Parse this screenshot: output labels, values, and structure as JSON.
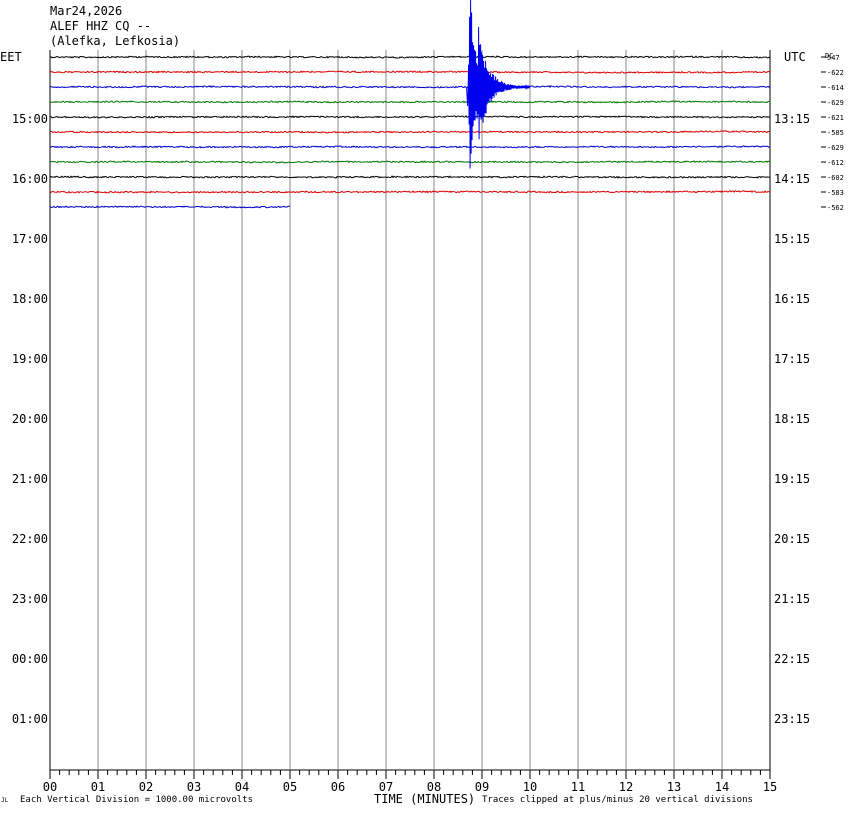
{
  "header": {
    "date": "Mar24,2026",
    "channel": "ALEF HHZ CQ --",
    "location": "(Alefka, Lefkosia)"
  },
  "chart_data": {
    "type": "line",
    "title": "",
    "left_axis_label": "EET",
    "right_axis_label": "UTC",
    "dc_label": "DC",
    "left_time_labels": [
      "15:00",
      "16:00",
      "17:00",
      "18:00",
      "19:00",
      "20:00",
      "21:00",
      "22:00",
      "23:00",
      "00:00",
      "01:00"
    ],
    "right_time_labels": [
      "13:15",
      "14:15",
      "15:15",
      "16:15",
      "17:15",
      "18:15",
      "19:15",
      "20:15",
      "21:15",
      "22:15",
      "23:15"
    ],
    "x_tick_labels": [
      "00",
      "01",
      "02",
      "03",
      "04",
      "05",
      "06",
      "07",
      "08",
      "09",
      "10",
      "11",
      "12",
      "13",
      "14",
      "15"
    ],
    "xlim": [
      0,
      15
    ],
    "xlabel": "TIME (MINUTES)",
    "grid": true,
    "trace_colors": [
      "#000000",
      "#dd0000",
      "#0000cc",
      "#007700"
    ],
    "dc_offsets": [
      "547",
      "-622",
      "-614",
      "-629",
      "-621",
      "-585",
      "-629",
      "-612",
      "-602",
      "-583",
      "-562"
    ],
    "last_trace_end_minute": 5,
    "event": {
      "trace_index": 2,
      "onset_minute": 8.72,
      "coda_end_minute": 10.0
    },
    "footer_left": "Each Vertical Division = 1000.00 microvolts",
    "footer_right": "Traces clipped at plus/minus 20 vertical divisions",
    "corner_mark": "JL"
  }
}
